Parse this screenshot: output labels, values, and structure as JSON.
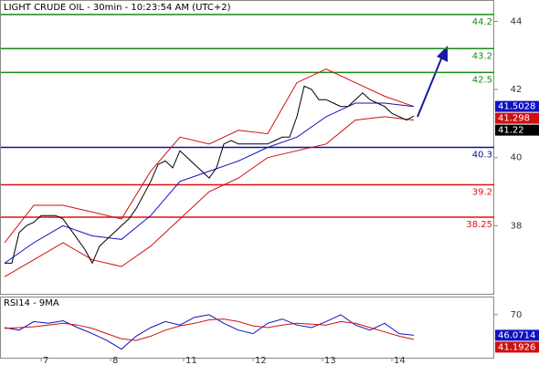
{
  "chart_data": [
    {
      "type": "line",
      "title": "LIGHT CRUDE OIL - 30min - 10:23:54 AM (UTC+2)",
      "xlim": [
        0,
        67
      ],
      "ylim": [
        36,
        44.6
      ],
      "yticks": [
        38,
        40,
        42,
        44
      ],
      "levels": [
        {
          "value": 44.2,
          "color": "#1a8a1a"
        },
        {
          "value": 43.2,
          "color": "#1a8a1a"
        },
        {
          "value": 42.5,
          "color": "#1a8a1a"
        },
        {
          "value": 40.3,
          "color": "#10109a"
        },
        {
          "value": 39.2,
          "color": "#e01010"
        },
        {
          "value": 38.25,
          "color": "#e01010"
        }
      ],
      "series": [
        {
          "color": "#d01010",
          "x": [
            0,
            4,
            8,
            12,
            16,
            20,
            24,
            28,
            32,
            36,
            40,
            44,
            48,
            52,
            56
          ],
          "values": [
            37.5,
            38.6,
            38.6,
            38.4,
            38.2,
            39.6,
            40.6,
            40.4,
            40.8,
            40.7,
            42.2,
            42.6,
            42.2,
            41.8,
            41.5
          ]
        },
        {
          "color": "#d01010",
          "x": [
            0,
            4,
            8,
            12,
            16,
            20,
            24,
            28,
            32,
            36,
            40,
            44,
            48,
            52,
            56
          ],
          "values": [
            36.5,
            37.0,
            37.5,
            37.0,
            36.8,
            37.4,
            38.2,
            39.0,
            39.4,
            40.0,
            40.2,
            40.4,
            41.1,
            41.2,
            41.1
          ]
        },
        {
          "color": "#1010c0",
          "x": [
            0,
            4,
            8,
            12,
            16,
            20,
            24,
            28,
            32,
            36,
            40,
            44,
            48,
            52,
            56
          ],
          "values": [
            36.9,
            37.5,
            38.0,
            37.7,
            37.6,
            38.3,
            39.3,
            39.6,
            39.9,
            40.3,
            40.6,
            41.2,
            41.6,
            41.6,
            41.5
          ]
        },
        {
          "color": "#000000",
          "x": [
            0,
            1,
            2,
            3,
            4,
            5,
            6,
            7,
            8,
            9,
            10,
            11,
            12,
            13,
            14,
            15,
            16,
            17,
            18,
            19,
            20,
            21,
            22,
            23,
            24,
            25,
            26,
            27,
            28,
            29,
            30,
            31,
            32,
            33,
            34,
            35,
            36,
            37,
            38,
            39,
            40,
            41,
            42,
            43,
            44,
            45,
            46,
            47,
            48,
            49,
            50,
            51,
            52,
            53,
            54,
            55,
            56
          ],
          "values": [
            36.9,
            36.9,
            37.8,
            38.0,
            38.1,
            38.3,
            38.3,
            38.3,
            38.2,
            37.9,
            37.6,
            37.3,
            36.9,
            37.4,
            37.6,
            37.8,
            38.0,
            38.2,
            38.5,
            38.9,
            39.3,
            39.8,
            39.9,
            39.7,
            40.2,
            40.0,
            39.8,
            39.6,
            39.4,
            39.7,
            40.4,
            40.5,
            40.4,
            40.4,
            40.4,
            40.4,
            40.4,
            40.5,
            40.6,
            40.6,
            41.2,
            42.1,
            42.0,
            41.7,
            41.7,
            41.6,
            41.5,
            41.5,
            41.7,
            41.9,
            41.7,
            41.6,
            41.5,
            41.3,
            41.2,
            41.1,
            41.22
          ]
        }
      ],
      "last_values": [
        {
          "value": 41.5028,
          "color": "#1010c0"
        },
        {
          "value": 41.298,
          "color": "#d01010"
        },
        {
          "value": 41.22,
          "color": "#000000"
        }
      ]
    },
    {
      "type": "line",
      "title": "RSI14 - 9MA",
      "xlim": [
        0,
        67
      ],
      "ylim": [
        20,
        90
      ],
      "yticks": [
        70
      ],
      "xticks": [
        {
          "value": 5,
          "label": "7"
        },
        {
          "value": 14.5,
          "label": "8"
        },
        {
          "value": 24.5,
          "label": "11"
        },
        {
          "value": 34,
          "label": "12"
        },
        {
          "value": 43.5,
          "label": "13"
        },
        {
          "value": 53,
          "label": "14"
        }
      ],
      "series": [
        {
          "color": "#1010c0",
          "x": [
            0,
            2,
            4,
            6,
            8,
            10,
            12,
            14,
            16,
            18,
            20,
            22,
            24,
            26,
            28,
            30,
            32,
            34,
            36,
            38,
            40,
            42,
            44,
            46,
            48,
            50,
            52,
            54,
            56
          ],
          "values": [
            55,
            52,
            62,
            60,
            63,
            55,
            48,
            40,
            30,
            45,
            55,
            62,
            58,
            67,
            70,
            60,
            52,
            48,
            60,
            65,
            58,
            55,
            62,
            70,
            58,
            52,
            60,
            48,
            46.0714
          ]
        },
        {
          "color": "#d01010",
          "x": [
            0,
            2,
            4,
            6,
            8,
            10,
            12,
            14,
            16,
            18,
            20,
            22,
            24,
            26,
            28,
            30,
            32,
            34,
            36,
            38,
            40,
            42,
            44,
            46,
            48,
            50,
            52,
            54,
            56
          ],
          "values": [
            54,
            55,
            56,
            58,
            60,
            58,
            54,
            48,
            42,
            40,
            45,
            52,
            57,
            60,
            64,
            65,
            62,
            57,
            55,
            58,
            60,
            59,
            58,
            62,
            60,
            55,
            50,
            45,
            41.1926
          ]
        }
      ],
      "last_values": [
        {
          "value": 46.0714,
          "color": "#1010c0"
        },
        {
          "value": 41.1926,
          "color": "#d01010"
        }
      ]
    }
  ]
}
